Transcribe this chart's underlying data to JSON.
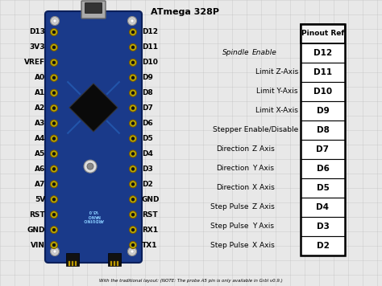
{
  "title": "ATmega 328P",
  "footnote": "With the traditional layout: (NOTE: The probe A5 pin is only available in Grbl v0.9.)",
  "left_pins": [
    "D13",
    "3V3",
    "VREF",
    "A0",
    "A1",
    "A2",
    "A3",
    "A4",
    "A5",
    "A6",
    "A7",
    "5V",
    "RST",
    "GND",
    "VIN"
  ],
  "right_pins": [
    "D12",
    "D11",
    "D10",
    "D9",
    "D8",
    "D7",
    "D6",
    "D5",
    "D4",
    "D3",
    "D2",
    "GND",
    "RST",
    "RX1",
    "TX1"
  ],
  "table_rows": [
    [
      "Spindle",
      "Enable",
      "D12",
      true
    ],
    [
      "Limit Z-Axis",
      "",
      "D11",
      false
    ],
    [
      "Limit Y-Axis",
      "",
      "D10",
      false
    ],
    [
      "Limit X-Axis",
      "",
      "D9",
      false
    ],
    [
      "Stepper Enable/Disable",
      "",
      "D8",
      false
    ],
    [
      "Direction",
      "Z Axis",
      "D7",
      false
    ],
    [
      "Direction",
      "Y Axis",
      "D6",
      false
    ],
    [
      "Direction",
      "X Axis",
      "D5",
      false
    ],
    [
      "Step Pulse",
      "Z Axis",
      "D4",
      false
    ],
    [
      "Step Pulse",
      "Y Axis",
      "D3",
      false
    ],
    [
      "Step Pulse",
      "X Axis",
      "D2",
      false
    ]
  ],
  "bg_color": "#e8e8e8",
  "grid_color": "#bbbbbb"
}
